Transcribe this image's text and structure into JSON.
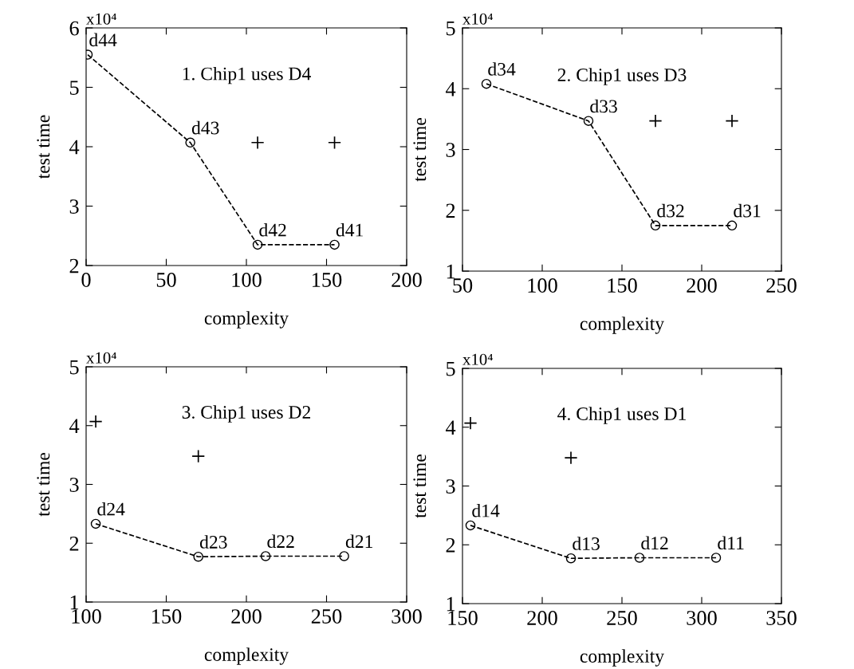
{
  "chart_data": [
    {
      "type": "scatter",
      "xlabel": "complexity",
      "ylabel": "test time",
      "xlim": [
        0,
        200
      ],
      "xticks": [
        0,
        50,
        100,
        150,
        200
      ],
      "ylim": [
        2,
        6
      ],
      "yticks": [
        2,
        3,
        4,
        5,
        6
      ],
      "grid": false,
      "series": [
        {
          "type": "line",
          "color": "#000000",
          "marker": "circle",
          "line_style": "dashed",
          "x": [
            1,
            65,
            107,
            155
          ],
          "values": [
            5.55,
            4.07,
            2.35,
            2.35
          ]
        },
        {
          "color": "#000000",
          "marker": "cross",
          "x": [
            107,
            155
          ],
          "values": [
            4.07,
            4.07
          ]
        }
      ],
      "annotations": [
        "1. Chip1 uses D4",
        "x10⁴",
        {
          "text": "d44",
          "x": 1,
          "y": 5.55
        },
        {
          "text": "d43",
          "x": 65,
          "y": 4.07
        },
        {
          "text": "d42",
          "x": 107,
          "y": 2.35
        },
        {
          "text": "d41",
          "x": 155,
          "y": 2.35
        }
      ]
    },
    {
      "type": "scatter",
      "xlabel": "complexity",
      "ylabel": "test time",
      "xlim": [
        50,
        250
      ],
      "xticks": [
        50,
        100,
        150,
        200,
        250
      ],
      "ylim": [
        1,
        5
      ],
      "yticks": [
        1,
        2,
        3,
        4,
        5
      ],
      "grid": false,
      "series": [
        {
          "type": "line",
          "color": "#000000",
          "marker": "circle",
          "line_style": "dashed",
          "x": [
            65,
            129,
            171,
            219
          ],
          "values": [
            4.08,
            3.47,
            1.75,
            1.75
          ]
        },
        {
          "color": "#000000",
          "marker": "cross",
          "x": [
            171,
            219
          ],
          "values": [
            3.47,
            3.47
          ]
        }
      ],
      "annotations": [
        "2. Chip1 uses D3",
        "x10⁴",
        {
          "text": "d34",
          "x": 65,
          "y": 4.08
        },
        {
          "text": "d33",
          "x": 129,
          "y": 3.47
        },
        {
          "text": "d32",
          "x": 171,
          "y": 1.75
        },
        {
          "text": "d31",
          "x": 219,
          "y": 1.75
        }
      ]
    },
    {
      "type": "scatter",
      "xlabel": "complexity",
      "ylabel": "test time",
      "xlim": [
        100,
        300
      ],
      "xticks": [
        100,
        150,
        200,
        250,
        300
      ],
      "ylim": [
        1,
        5
      ],
      "yticks": [
        1,
        2,
        3,
        4,
        5
      ],
      "grid": false,
      "series": [
        {
          "type": "line",
          "color": "#000000",
          "marker": "circle",
          "line_style": "dashed",
          "x": [
            106,
            170,
            212,
            261
          ],
          "values": [
            2.33,
            1.77,
            1.78,
            1.78
          ]
        },
        {
          "color": "#000000",
          "marker": "cross",
          "x": [
            106,
            170
          ],
          "values": [
            4.07,
            3.48
          ]
        }
      ],
      "annotations": [
        "3. Chip1 uses D2",
        "x10⁴",
        {
          "text": "d24",
          "x": 106,
          "y": 2.33
        },
        {
          "text": "d23",
          "x": 170,
          "y": 1.77
        },
        {
          "text": "d22",
          "x": 212,
          "y": 1.78
        },
        {
          "text": "d21",
          "x": 261,
          "y": 1.78
        }
      ]
    },
    {
      "type": "scatter",
      "xlabel": "complexity",
      "ylabel": "test time",
      "xlim": [
        150,
        350
      ],
      "xticks": [
        150,
        200,
        250,
        300,
        350
      ],
      "ylim": [
        1,
        5
      ],
      "yticks": [
        1,
        2,
        3,
        4,
        5
      ],
      "grid": false,
      "series": [
        {
          "type": "line",
          "color": "#000000",
          "marker": "circle",
          "line_style": "dashed",
          "x": [
            155,
            218,
            261,
            309
          ],
          "values": [
            2.33,
            1.77,
            1.78,
            1.78
          ]
        },
        {
          "color": "#000000",
          "marker": "cross",
          "x": [
            155,
            218
          ],
          "values": [
            4.07,
            3.48
          ]
        }
      ],
      "annotations": [
        "4. Chip1 uses D1",
        "x10⁴",
        {
          "text": "d14",
          "x": 155,
          "y": 2.33
        },
        {
          "text": "d13",
          "x": 218,
          "y": 1.77
        },
        {
          "text": "d12",
          "x": 261,
          "y": 1.78
        },
        {
          "text": "d11",
          "x": 309,
          "y": 1.78
        }
      ]
    }
  ]
}
